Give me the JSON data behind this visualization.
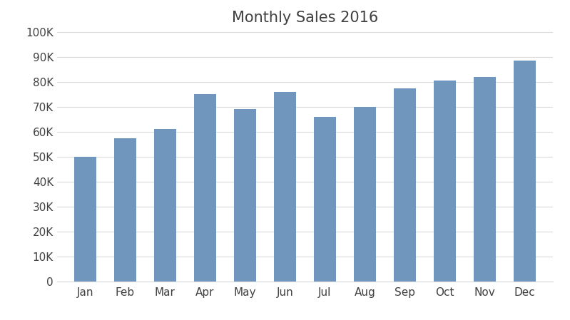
{
  "title": "Monthly Sales 2016",
  "categories": [
    "Jan",
    "Feb",
    "Mar",
    "Apr",
    "May",
    "Jun",
    "Jul",
    "Aug",
    "Sep",
    "Oct",
    "Nov",
    "Dec"
  ],
  "values": [
    50000,
    57500,
    61000,
    75000,
    69000,
    76000,
    66000,
    70000,
    77500,
    80500,
    82000,
    88500
  ],
  "bar_color": "#7096BE",
  "background_color": "#ffffff",
  "ylim": [
    0,
    100000
  ],
  "yticks": [
    0,
    10000,
    20000,
    30000,
    40000,
    50000,
    60000,
    70000,
    80000,
    90000,
    100000
  ],
  "ytick_labels": [
    "0",
    "10K",
    "20K",
    "30K",
    "40K",
    "50K",
    "60K",
    "70K",
    "80K",
    "90K",
    "100K"
  ],
  "title_fontsize": 15,
  "tick_fontsize": 11,
  "title_color": "#404040",
  "tick_color": "#404040",
  "grid_color": "#d9d9d9",
  "bar_width": 0.55
}
